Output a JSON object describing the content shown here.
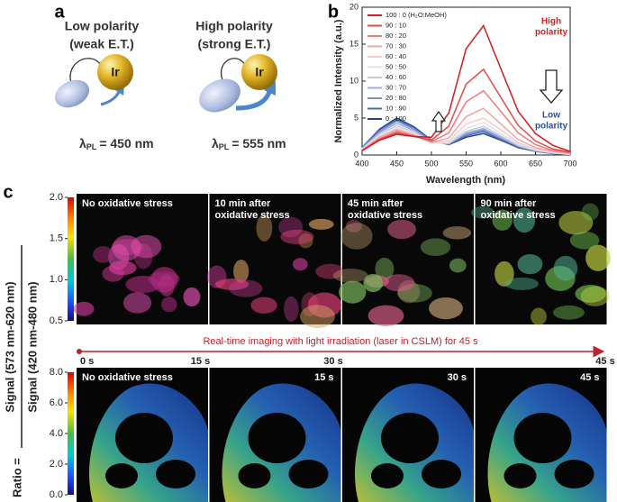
{
  "panel_a": {
    "label": "a",
    "left": {
      "title": "Low polarity",
      "subtitle": "(weak E.T.)",
      "metal": "Ir",
      "lambda": "λ",
      "subscript": "PL",
      "emission": "= 450 nm"
    },
    "right": {
      "title": "High polarity",
      "subtitle": "(strong E.T.)",
      "metal": "Ir",
      "lambda": "λ",
      "subscript": "PL",
      "emission": "= 555 nm"
    }
  },
  "panel_b": {
    "label": "b"
  },
  "chart_data": {
    "type": "line",
    "x_label": "Wavelength (nm)",
    "y_label": "Normalized Intensity (a.u.)",
    "x": [
      400,
      425,
      450,
      475,
      500,
      525,
      550,
      575,
      600,
      625,
      650,
      675,
      700
    ],
    "xlim": [
      400,
      700
    ],
    "xticks": [
      400,
      450,
      500,
      550,
      600,
      650,
      700
    ],
    "ylim": [
      0,
      20
    ],
    "yticks": [
      0,
      5,
      10,
      15,
      20
    ],
    "legend": "top-left",
    "series": [
      {
        "name": "100 : 0 (H₂O:MeOH)",
        "color": "#d7191c",
        "values": [
          0.6,
          2.0,
          2.8,
          2.5,
          2.4,
          5.7,
          14.4,
          17.5,
          11.7,
          5.9,
          2.9,
          1.3,
          0.5
        ]
      },
      {
        "name": "90 : 10",
        "color": "#e34a4a",
        "values": [
          0.6,
          2.1,
          3.0,
          2.5,
          2.0,
          3.9,
          9.6,
          11.6,
          7.8,
          4.0,
          1.9,
          0.8,
          0.4
        ]
      },
      {
        "name": "80 : 20",
        "color": "#ec7b7b",
        "values": [
          0.6,
          2.2,
          3.2,
          2.6,
          1.8,
          3.0,
          7.2,
          8.7,
          5.9,
          3.0,
          1.4,
          0.6,
          0.3
        ]
      },
      {
        "name": "70 : 30",
        "color": "#f2a5a5",
        "values": [
          0.7,
          2.4,
          3.4,
          2.7,
          1.7,
          2.3,
          5.2,
          6.3,
          4.2,
          2.1,
          1.0,
          0.5,
          0.2
        ]
      },
      {
        "name": "60 : 40",
        "color": "#f7cccc",
        "values": [
          0.7,
          2.5,
          3.6,
          2.8,
          1.7,
          1.9,
          4.2,
          5.0,
          3.4,
          1.7,
          0.8,
          0.4,
          0.2
        ]
      },
      {
        "name": "50 : 50",
        "color": "#e2e2ec",
        "values": [
          0.8,
          2.7,
          3.8,
          2.9,
          1.7,
          1.7,
          3.6,
          4.4,
          2.9,
          1.5,
          0.7,
          0.3,
          0.1
        ]
      },
      {
        "name": "40 : 60",
        "color": "#c5cde3",
        "values": [
          0.8,
          2.8,
          4.0,
          3.1,
          1.7,
          1.6,
          3.2,
          3.9,
          2.6,
          1.3,
          0.6,
          0.3,
          0.1
        ]
      },
      {
        "name": "30 : 70",
        "color": "#9fb0d6",
        "values": [
          0.9,
          3.0,
          4.3,
          3.3,
          1.8,
          1.5,
          3.0,
          3.6,
          2.4,
          1.2,
          0.6,
          0.3,
          0.1
        ]
      },
      {
        "name": "20 : 80",
        "color": "#7a92c8",
        "values": [
          0.9,
          3.2,
          4.6,
          3.5,
          1.9,
          1.5,
          2.8,
          3.4,
          2.3,
          1.2,
          0.6,
          0.2,
          0.1
        ]
      },
      {
        "name": "10 : 90",
        "color": "#4a68b0",
        "values": [
          1.0,
          3.4,
          4.8,
          3.7,
          1.9,
          1.5,
          2.6,
          3.2,
          2.1,
          1.1,
          0.5,
          0.2,
          0.1
        ]
      },
      {
        "name": "0 : 100",
        "color": "#1f3f99",
        "values": [
          1.0,
          3.5,
          5.0,
          3.8,
          2.0,
          1.4,
          2.4,
          2.9,
          2.0,
          1.0,
          0.5,
          0.2,
          0.1
        ]
      }
    ],
    "annotations": [
      {
        "lines": [
          "High",
          "polarity"
        ],
        "color": "#e02020"
      },
      {
        "lines": [
          "Low",
          "polarity"
        ],
        "color": "#2050b0"
      }
    ]
  },
  "panel_c": {
    "label": "c",
    "ratio_label": "Ratio =",
    "numerator": "Signal (573 nm-620 nm)",
    "denominator": "Signal (420 nm-480 nm)",
    "top_colorbar": {
      "lim": [
        0.5,
        2.0
      ],
      "ticks": [
        {
          "value": 2,
          "label": "2.0"
        },
        {
          "value": 1.5,
          "label": "1.5"
        },
        {
          "value": 1,
          "label": "1.0"
        },
        {
          "value": 0.5,
          "label": "0.5"
        }
      ]
    },
    "top_images": [
      {
        "caption": [
          "No oxidative stress"
        ]
      },
      {
        "caption": [
          "10 min after",
          "oxidative stress"
        ]
      },
      {
        "caption": [
          "45 min after",
          "oxidative stress"
        ]
      },
      {
        "caption": [
          "90 min after",
          "oxidative stress"
        ]
      }
    ],
    "timeline": {
      "text": "Real-time imaging with light irradiation (laser in CSLM) for 45 s",
      "times": [
        "0 s",
        "15 s",
        "30 s",
        "45 s"
      ]
    },
    "bottom_colorbar": {
      "lim": [
        0,
        8
      ],
      "ticks": [
        {
          "value": 8,
          "label": "8.0"
        },
        {
          "value": 6,
          "label": "6.0"
        },
        {
          "value": 4,
          "label": "4.0"
        },
        {
          "value": 2,
          "label": "2.0"
        },
        {
          "value": 0,
          "label": "0.0"
        }
      ]
    },
    "bottom_images": [
      {
        "caption": "No oxidative stress"
      },
      {
        "caption": "15 s"
      },
      {
        "caption": "30 s"
      },
      {
        "caption": "45 s"
      }
    ]
  }
}
